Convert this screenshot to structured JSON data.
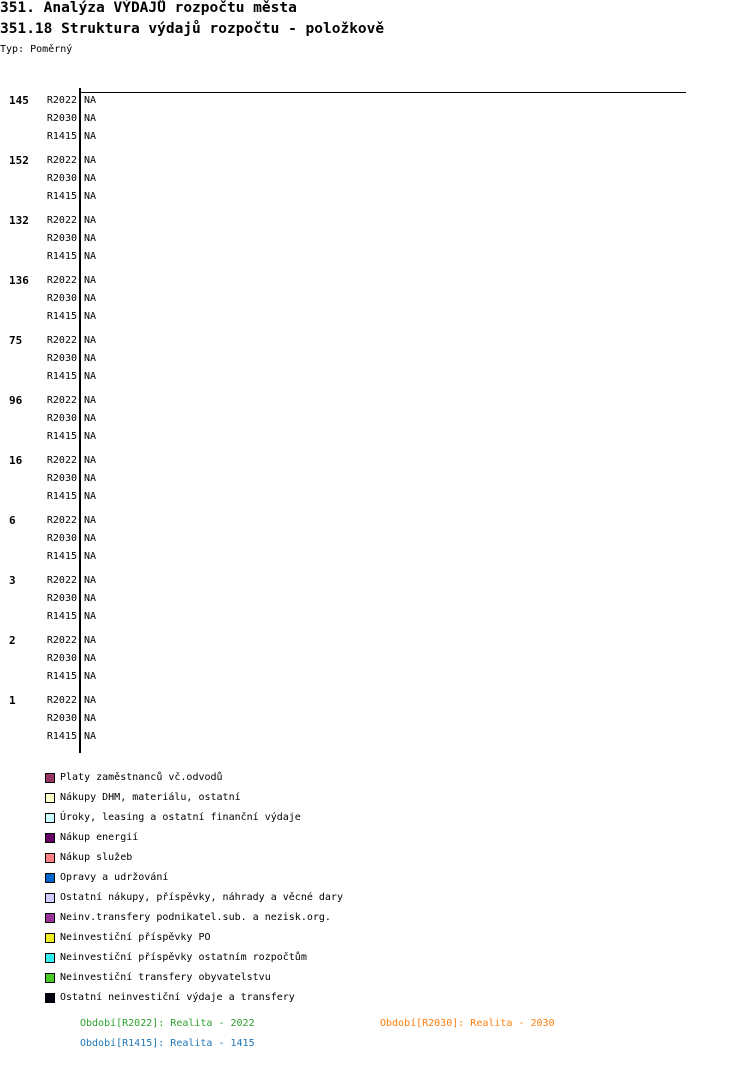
{
  "header": {
    "title": "351. Analýza VÝDAJŮ rozpočtu města",
    "subtitle": "351.18 Struktura výdajů rozpočtu - položkově",
    "type": "Typ: Poměrný"
  },
  "chart_data": {
    "type": "bar",
    "orientation": "horizontal-stacked",
    "groups": [
      "145",
      "152",
      "132",
      "136",
      "75",
      "96",
      "16",
      "6",
      "3",
      "2",
      "1"
    ],
    "periods": [
      "R2022",
      "R2030",
      "R1415"
    ],
    "values_label": "NA",
    "values": null,
    "series": [
      {
        "name": "Platy zaměstnanců vč.odvodů",
        "color": "#993366"
      },
      {
        "name": "Nákupy DHM, materiálu, ostatní",
        "color": "#ffffcc"
      },
      {
        "name": "Úroky, leasing a ostatní finanční výdaje",
        "color": "#ccffff"
      },
      {
        "name": "Nákup energií",
        "color": "#660066"
      },
      {
        "name": "Nákup služeb",
        "color": "#ff8080"
      },
      {
        "name": "Opravy a udržování",
        "color": "#0066cc"
      },
      {
        "name": "Ostatní nákupy, příspěvky, náhrady a věcné dary",
        "color": "#ccccff"
      },
      {
        "name": "Neinv.transfery podnikatel.sub. a nezisk.org.",
        "color": "#993399"
      },
      {
        "name": "Neinvestiční příspěvky PO",
        "color": "#eeee22"
      },
      {
        "name": "Neinvestiční příspěvky ostatním rozpočtům",
        "color": "#33eeee"
      },
      {
        "name": "Neinvestiční transfery obyvatelstvu",
        "color": "#44cc22"
      },
      {
        "name": "Ostatní neinvestiční výdaje a transfery",
        "color": "#000011"
      }
    ],
    "period_legend": [
      {
        "text": "Období[R2022]: Realita - 2022",
        "color": "#2ca02c"
      },
      {
        "text": "Období[R2030]: Realita - 2030",
        "color": "#ff7f0e"
      },
      {
        "text": "Období[R1415]: Realita - 1415",
        "color": "#1f77b4"
      }
    ]
  }
}
